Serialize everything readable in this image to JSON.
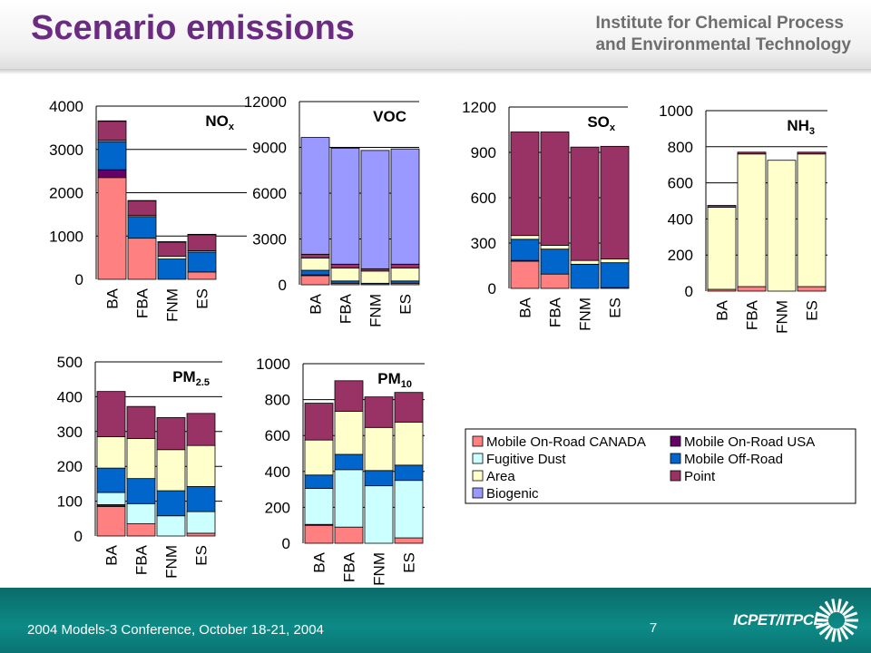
{
  "slide_title": "Scenario emissions",
  "institute": {
    "line1": "Institute for Chemical Process",
    "line2": "and Environmental Technology"
  },
  "footer": {
    "text": "2004 Models-3 Conference, October 18-21, 2004",
    "page": "7",
    "logo_text": "ICPET/ITPCE"
  },
  "colors": {
    "mobile_onroad_canada": "#ff8080",
    "mobile_onroad_usa": "#660066",
    "fugitive_dust": "#ccffff",
    "mobile_offroad": "#0066cc",
    "area": "#ffffcc",
    "point": "#993366",
    "biogenic": "#9999ff",
    "title": "#6b2b83",
    "footer_band": "#0d8a86"
  },
  "legend": [
    {
      "key": "mobile_onroad_canada",
      "label": "Mobile On-Road CANADA"
    },
    {
      "key": "mobile_onroad_usa",
      "label": "Mobile On-Road USA"
    },
    {
      "key": "fugitive_dust",
      "label": "Fugitive Dust"
    },
    {
      "key": "mobile_offroad",
      "label": "Mobile Off-Road"
    },
    {
      "key": "area",
      "label": "Area"
    },
    {
      "key": "point",
      "label": "Point"
    },
    {
      "key": "biogenic",
      "label": "Biogenic"
    }
  ],
  "chart_data": [
    {
      "type": "bar",
      "stacked": true,
      "label_main": "NO",
      "label_sub": "x",
      "categories": [
        "BA",
        "FBA",
        "FNM",
        "ES"
      ],
      "ylim": [
        0,
        4000
      ],
      "yticks": [
        0,
        1000,
        2000,
        3000,
        4000
      ],
      "series": [
        {
          "key": "mobile_onroad_canada",
          "values": [
            2350,
            950,
            0,
            170
          ]
        },
        {
          "key": "mobile_onroad_usa",
          "values": [
            180,
            0,
            0,
            0
          ]
        },
        {
          "key": "fugitive_dust",
          "values": [
            0,
            0,
            0,
            0
          ]
        },
        {
          "key": "mobile_offroad",
          "values": [
            650,
            500,
            470,
            460
          ]
        },
        {
          "key": "area",
          "values": [
            30,
            30,
            60,
            30
          ]
        },
        {
          "key": "point",
          "values": [
            440,
            330,
            330,
            370
          ]
        },
        {
          "key": "biogenic",
          "values": [
            10,
            10,
            10,
            10
          ]
        }
      ]
    },
    {
      "type": "bar",
      "stacked": true,
      "label_main": "VOC",
      "label_sub": "",
      "categories": [
        "BA",
        "FBA",
        "FNM",
        "ES"
      ],
      "ylim": [
        0,
        12000
      ],
      "yticks": [
        0,
        3000,
        6000,
        9000,
        12000
      ],
      "series": [
        {
          "key": "mobile_onroad_canada",
          "values": [
            600,
            100,
            0,
            100
          ]
        },
        {
          "key": "mobile_onroad_usa",
          "values": [
            50,
            0,
            0,
            0
          ]
        },
        {
          "key": "fugitive_dust",
          "values": [
            0,
            0,
            0,
            0
          ]
        },
        {
          "key": "mobile_offroad",
          "values": [
            300,
            150,
            100,
            150
          ]
        },
        {
          "key": "area",
          "values": [
            800,
            850,
            800,
            850
          ]
        },
        {
          "key": "point",
          "values": [
            250,
            250,
            150,
            250
          ]
        },
        {
          "key": "biogenic",
          "values": [
            7650,
            7600,
            7750,
            7550
          ]
        }
      ]
    },
    {
      "type": "bar",
      "stacked": true,
      "label_main": "SO",
      "label_sub": "x",
      "categories": [
        "BA",
        "FBA",
        "FNM",
        "ES"
      ],
      "ylim": [
        0,
        1200
      ],
      "yticks": [
        0,
        300,
        600,
        900,
        1200
      ],
      "series": [
        {
          "key": "mobile_onroad_canada",
          "values": [
            180,
            95,
            0,
            5
          ]
        },
        {
          "key": "mobile_onroad_usa",
          "values": [
            5,
            0,
            0,
            0
          ]
        },
        {
          "key": "fugitive_dust",
          "values": [
            0,
            0,
            0,
            0
          ]
        },
        {
          "key": "mobile_offroad",
          "values": [
            140,
            165,
            160,
            165
          ]
        },
        {
          "key": "area",
          "values": [
            25,
            25,
            25,
            25
          ]
        },
        {
          "key": "point",
          "values": [
            685,
            750,
            750,
            745
          ]
        },
        {
          "key": "biogenic",
          "values": [
            0,
            0,
            0,
            0
          ]
        }
      ]
    },
    {
      "type": "bar",
      "stacked": true,
      "label_main": "NH",
      "label_sub": "3",
      "categories": [
        "BA",
        "FBA",
        "FNM",
        "ES"
      ],
      "ylim": [
        0,
        1000
      ],
      "yticks": [
        0,
        200,
        400,
        600,
        800,
        1000
      ],
      "series": [
        {
          "key": "mobile_onroad_canada",
          "values": [
            10,
            25,
            0,
            25
          ]
        },
        {
          "key": "mobile_onroad_usa",
          "values": [
            0,
            0,
            0,
            0
          ]
        },
        {
          "key": "fugitive_dust",
          "values": [
            0,
            0,
            0,
            0
          ]
        },
        {
          "key": "mobile_offroad",
          "values": [
            0,
            0,
            0,
            0
          ]
        },
        {
          "key": "area",
          "values": [
            455,
            735,
            725,
            735
          ]
        },
        {
          "key": "point",
          "values": [
            10,
            10,
            0,
            10
          ]
        },
        {
          "key": "biogenic",
          "values": [
            0,
            0,
            0,
            0
          ]
        }
      ]
    },
    {
      "type": "bar",
      "stacked": true,
      "label_main": "PM",
      "label_sub": "2.5",
      "categories": [
        "BA",
        "FBA",
        "FNM",
        "ES"
      ],
      "ylim": [
        0,
        500
      ],
      "yticks": [
        0,
        100,
        200,
        300,
        400,
        500
      ],
      "series": [
        {
          "key": "mobile_onroad_canada",
          "values": [
            85,
            35,
            0,
            8
          ]
        },
        {
          "key": "mobile_onroad_usa",
          "values": [
            5,
            0,
            0,
            0
          ]
        },
        {
          "key": "fugitive_dust",
          "values": [
            35,
            58,
            58,
            62
          ]
        },
        {
          "key": "mobile_offroad",
          "values": [
            70,
            72,
            72,
            72
          ]
        },
        {
          "key": "area",
          "values": [
            90,
            115,
            118,
            118
          ]
        },
        {
          "key": "point",
          "values": [
            130,
            92,
            92,
            92
          ]
        },
        {
          "key": "biogenic",
          "values": [
            0,
            0,
            0,
            0
          ]
        }
      ]
    },
    {
      "type": "bar",
      "stacked": true,
      "label_main": "PM",
      "label_sub": "10",
      "categories": [
        "BA",
        "FBA",
        "FNM",
        "ES"
      ],
      "ylim": [
        0,
        1000
      ],
      "yticks": [
        0,
        200,
        400,
        600,
        800,
        1000
      ],
      "series": [
        {
          "key": "mobile_onroad_canada",
          "values": [
            100,
            90,
            0,
            30
          ]
        },
        {
          "key": "mobile_onroad_usa",
          "values": [
            5,
            0,
            0,
            0
          ]
        },
        {
          "key": "fugitive_dust",
          "values": [
            200,
            320,
            320,
            320
          ]
        },
        {
          "key": "mobile_offroad",
          "values": [
            75,
            85,
            85,
            85
          ]
        },
        {
          "key": "area",
          "values": [
            195,
            240,
            240,
            240
          ]
        },
        {
          "key": "point",
          "values": [
            205,
            170,
            170,
            165
          ]
        },
        {
          "key": "biogenic",
          "values": [
            0,
            0,
            0,
            0
          ]
        }
      ]
    }
  ]
}
